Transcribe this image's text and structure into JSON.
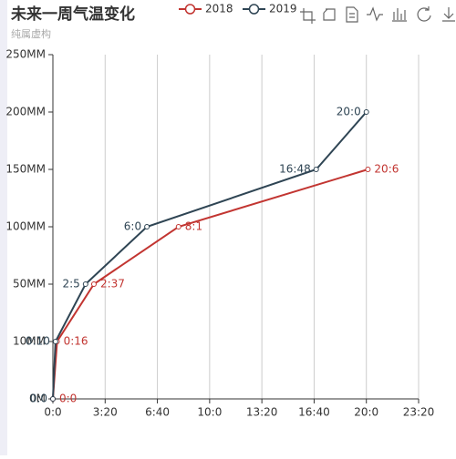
{
  "chart_data": {
    "type": "line",
    "title": "未来一周气温变化",
    "subtitle": "纯属虚构",
    "xlim": [
      0,
      1400
    ],
    "xticks": [
      {
        "value": 0,
        "label": "0:0"
      },
      {
        "value": 200,
        "label": "3:20"
      },
      {
        "value": 400,
        "label": "6:40"
      },
      {
        "value": 600,
        "label": "10:0"
      },
      {
        "value": 800,
        "label": "13:20"
      },
      {
        "value": 1000,
        "label": "16:40"
      },
      {
        "value": 1200,
        "label": "20:0"
      },
      {
        "value": 1400,
        "label": "23:20"
      }
    ],
    "ylim": [
      0,
      250
    ],
    "yticks": [
      {
        "value": 0,
        "label": "0M"
      },
      {
        "value": 10,
        "label": "10MM"
      },
      {
        "value": 50,
        "label": "50MM"
      },
      {
        "value": 100,
        "label": "100MM"
      },
      {
        "value": 150,
        "label": "150MM"
      },
      {
        "value": 200,
        "label": "200MM"
      },
      {
        "value": 250,
        "label": "250MM"
      }
    ],
    "grid": true,
    "series": [
      {
        "name": "2018",
        "color": "#c23531",
        "x": [
          0,
          16,
          157,
          481,
          1206
        ],
        "values": [
          0,
          10,
          50,
          100,
          150
        ],
        "point_labels": [
          "0:0",
          "0:16",
          "2:37",
          "8:1",
          "20:6"
        ]
      },
      {
        "name": "2019",
        "color": "#2f4554",
        "x": [
          0,
          10,
          125,
          360,
          1008,
          1200
        ],
        "values": [
          0,
          10,
          50,
          100,
          150,
          200
        ],
        "point_labels": [
          "0:0",
          "0:10",
          "2:5",
          "6:0",
          "16:48",
          "20:0"
        ]
      }
    ]
  }
}
